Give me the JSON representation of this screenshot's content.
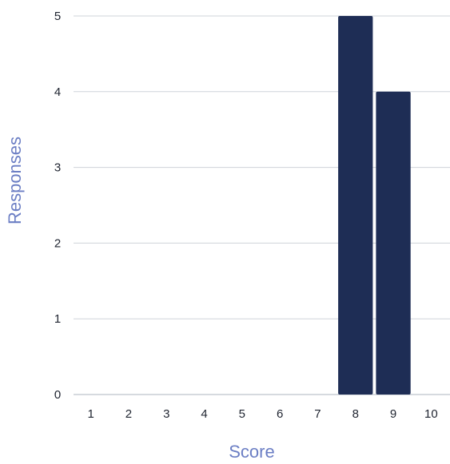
{
  "chart_data": {
    "type": "bar",
    "categories": [
      "1",
      "2",
      "3",
      "4",
      "5",
      "6",
      "7",
      "8",
      "9",
      "10"
    ],
    "values": [
      0,
      0,
      0,
      0,
      0,
      0,
      0,
      5,
      4,
      0
    ],
    "xlabel": "Score",
    "ylabel": "Responses",
    "ylim": [
      0,
      5
    ],
    "yticks": [
      "0",
      "1",
      "2",
      "3",
      "4",
      "5"
    ],
    "grid": true,
    "bar_color": "#1e2d55",
    "grid_color": "#cfd3da",
    "label_color": "#6b7ec4"
  }
}
